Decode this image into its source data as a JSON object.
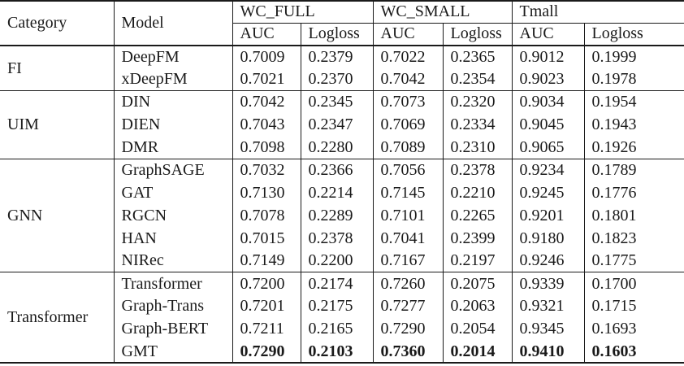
{
  "table": {
    "header": {
      "category": "Category",
      "model": "Model",
      "groups": [
        {
          "label": "WC_FULL",
          "metrics": [
            "AUC",
            "Logloss"
          ]
        },
        {
          "label": "WC_SMALL",
          "metrics": [
            "AUC",
            "Logloss"
          ]
        },
        {
          "label": "Tmall",
          "metrics": [
            "AUC",
            "Logloss"
          ]
        }
      ]
    },
    "sections": [
      {
        "category": "FI",
        "rows": [
          {
            "model": "DeepFM",
            "bold": false,
            "values": [
              "0.7009",
              "0.2379",
              "0.7022",
              "0.2365",
              "0.9012",
              "0.1999"
            ]
          },
          {
            "model": "xDeepFM",
            "bold": false,
            "values": [
              "0.7021",
              "0.2370",
              "0.7042",
              "0.2354",
              "0.9023",
              "0.1978"
            ]
          }
        ]
      },
      {
        "category": "UIM",
        "rows": [
          {
            "model": "DIN",
            "bold": false,
            "values": [
              "0.7042",
              "0.2345",
              "0.7073",
              "0.2320",
              "0.9034",
              "0.1954"
            ]
          },
          {
            "model": "DIEN",
            "bold": false,
            "values": [
              "0.7043",
              "0.2347",
              "0.7069",
              "0.2334",
              "0.9045",
              "0.1943"
            ]
          },
          {
            "model": "DMR",
            "bold": false,
            "values": [
              "0.7098",
              "0.2280",
              "0.7089",
              "0.2310",
              "0.9065",
              "0.1926"
            ]
          }
        ]
      },
      {
        "category": "GNN",
        "rows": [
          {
            "model": "GraphSAGE",
            "bold": false,
            "values": [
              "0.7032",
              "0.2366",
              "0.7056",
              "0.2378",
              "0.9234",
              "0.1789"
            ]
          },
          {
            "model": "GAT",
            "bold": false,
            "values": [
              "0.7130",
              "0.2214",
              "0.7145",
              "0.2210",
              "0.9245",
              "0.1776"
            ]
          },
          {
            "model": "RGCN",
            "bold": false,
            "values": [
              "0.7078",
              "0.2289",
              "0.7101",
              "0.2265",
              "0.9201",
              "0.1801"
            ]
          },
          {
            "model": "HAN",
            "bold": false,
            "values": [
              "0.7015",
              "0.2378",
              "0.7041",
              "0.2399",
              "0.9180",
              "0.1823"
            ]
          },
          {
            "model": "NIRec",
            "bold": false,
            "values": [
              "0.7149",
              "0.2200",
              "0.7167",
              "0.2197",
              "0.9246",
              "0.1775"
            ]
          }
        ]
      },
      {
        "category": "Transformer",
        "rows": [
          {
            "model": "Transformer",
            "bold": false,
            "values": [
              "0.7200",
              "0.2174",
              "0.7260",
              "0.2075",
              "0.9339",
              "0.1700"
            ]
          },
          {
            "model": "Graph-Trans",
            "bold": false,
            "values": [
              "0.7201",
              "0.2175",
              "0.7277",
              "0.2063",
              "0.9321",
              "0.1715"
            ]
          },
          {
            "model": "Graph-BERT",
            "bold": false,
            "values": [
              "0.7211",
              "0.2165",
              "0.7290",
              "0.2054",
              "0.9345",
              "0.1693"
            ]
          },
          {
            "model": "GMT",
            "bold": true,
            "values": [
              "0.7290",
              "0.2103",
              "0.7360",
              "0.2014",
              "0.9410",
              "0.1603"
            ]
          }
        ]
      }
    ]
  },
  "colors": {
    "text": "#1a1a1a",
    "border": "#1a1a1a",
    "background": "#ffffff"
  }
}
